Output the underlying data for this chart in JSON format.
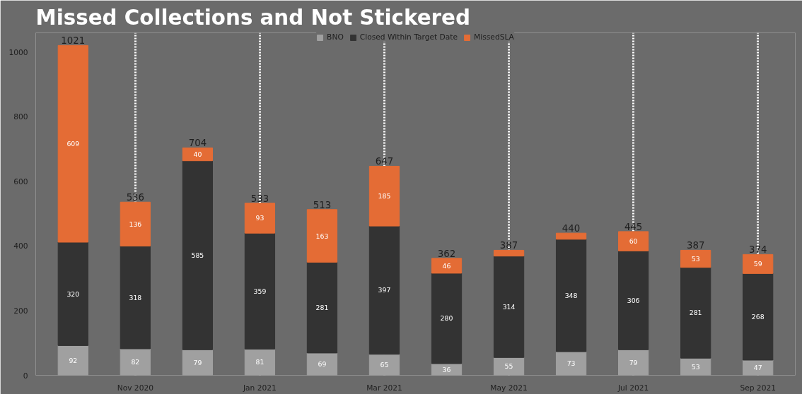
{
  "chart_data": {
    "type": "bar",
    "title": "Missed Collections and Not Stickered",
    "stacked": true,
    "categories": [
      null,
      "Nov 2020",
      null,
      "Jan 2021",
      null,
      "Mar 2021",
      null,
      "May 2021",
      null,
      "Jul 2021",
      null,
      "Sep 2021"
    ],
    "series": [
      {
        "name": "BNO",
        "color": "#a0a0a0",
        "values": [
          92,
          82,
          79,
          81,
          69,
          65,
          36,
          55,
          73,
          79,
          53,
          47
        ],
        "value_labels": [
          "92",
          "82",
          "79",
          "81",
          "69",
          "65",
          "36",
          "55",
          "73",
          "79",
          "53",
          "47"
        ]
      },
      {
        "name": "Closed Within Target Date",
        "color": "#333333",
        "values": [
          320,
          318,
          585,
          359,
          281,
          397,
          280,
          314,
          348,
          306,
          281,
          268
        ],
        "value_labels": [
          "320",
          "318",
          "585",
          "359",
          "281",
          "397",
          "280",
          "314",
          "348",
          "306",
          "281",
          "268"
        ]
      },
      {
        "name": "MissedSLA",
        "color": "#e46c35",
        "values": [
          609,
          136,
          40,
          93,
          163,
          185,
          46,
          18,
          19,
          60,
          53,
          59
        ],
        "value_labels": [
          "609",
          "136",
          "40",
          "93",
          "163",
          "185",
          "46",
          null,
          null,
          "60",
          "53",
          "59"
        ]
      }
    ],
    "totals": [
      "1021",
      "536",
      "704",
      "533",
      "513",
      "647",
      "362",
      "387",
      "440",
      "445",
      "387",
      "374"
    ],
    "ylim": [
      0,
      1060
    ],
    "yticks": [
      0,
      200,
      400,
      600,
      800,
      1000
    ],
    "grid": "x",
    "legend": "top"
  }
}
